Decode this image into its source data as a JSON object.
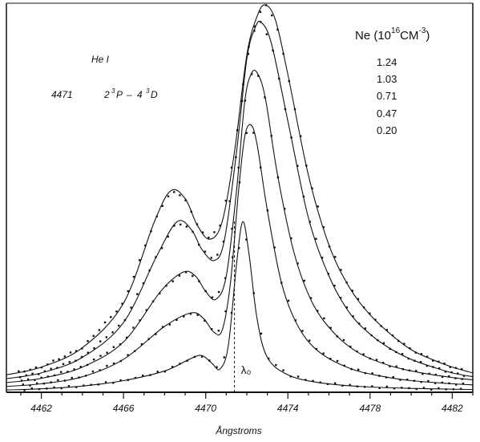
{
  "chart_data": {
    "type": "line",
    "title": "He I",
    "transition": {
      "wavelength": "4471",
      "lower": "2",
      "lower_sup": "3",
      "lower_term": "P",
      "upper": "4",
      "upper_sup": "3",
      "upper_term": "D"
    },
    "legend": {
      "title_prefix": "Ne (10",
      "title_exp": "16",
      "title_mid": "CM",
      "title_exp2": "-3",
      "title_suffix": ")",
      "placement": "top-right",
      "entries": [
        "1.24",
        "1.03",
        "0.71",
        "0.47",
        "0.20"
      ]
    },
    "xlabel": "Ångstroms",
    "ylabel": "",
    "xlim": [
      4460.3,
      4483
    ],
    "ylim": [
      0,
      1
    ],
    "x_ticks": [
      4462,
      4466,
      4470,
      4474,
      4478,
      4482
    ],
    "annotation": "λ₀",
    "lambda0": 4471.4,
    "grid": false,
    "series": [
      {
        "name": "1.24",
        "values": [
          [
            4460.3,
            0.045
          ],
          [
            4462,
            0.065
          ],
          [
            4464,
            0.115
          ],
          [
            4466,
            0.23
          ],
          [
            4467.5,
            0.44
          ],
          [
            4468.3,
            0.52
          ],
          [
            4469,
            0.5
          ],
          [
            4469.6,
            0.43
          ],
          [
            4470.2,
            0.395
          ],
          [
            4470.8,
            0.44
          ],
          [
            4471.4,
            0.62
          ],
          [
            4472,
            0.87
          ],
          [
            4472.5,
            0.97
          ],
          [
            4472.9,
            1.0
          ],
          [
            4473.4,
            0.96
          ],
          [
            4474,
            0.82
          ],
          [
            4475,
            0.56
          ],
          [
            4476,
            0.38
          ],
          [
            4477,
            0.27
          ],
          [
            4478,
            0.2
          ],
          [
            4479,
            0.15
          ],
          [
            4480,
            0.11
          ],
          [
            4481,
            0.085
          ],
          [
            4482,
            0.065
          ],
          [
            4483,
            0.05
          ]
        ]
      },
      {
        "name": "1.03",
        "values": [
          [
            4460.3,
            0.035
          ],
          [
            4462,
            0.05
          ],
          [
            4464,
            0.09
          ],
          [
            4466,
            0.18
          ],
          [
            4467.6,
            0.35
          ],
          [
            4468.6,
            0.44
          ],
          [
            4469.3,
            0.42
          ],
          [
            4469.8,
            0.37
          ],
          [
            4470.4,
            0.34
          ],
          [
            4470.9,
            0.39
          ],
          [
            4471.5,
            0.62
          ],
          [
            4472,
            0.86
          ],
          [
            4472.4,
            0.94
          ],
          [
            4472.7,
            0.955
          ],
          [
            4473.2,
            0.9
          ],
          [
            4474,
            0.7
          ],
          [
            4475,
            0.45
          ],
          [
            4476,
            0.3
          ],
          [
            4477,
            0.205
          ],
          [
            4478,
            0.15
          ],
          [
            4479,
            0.112
          ],
          [
            4480,
            0.085
          ],
          [
            4481,
            0.066
          ],
          [
            4482,
            0.05
          ],
          [
            4483,
            0.04
          ]
        ]
      },
      {
        "name": "0.71",
        "values": [
          [
            4460.3,
            0.025
          ],
          [
            4462,
            0.036
          ],
          [
            4464,
            0.065
          ],
          [
            4466,
            0.13
          ],
          [
            4467.8,
            0.26
          ],
          [
            4468.9,
            0.31
          ],
          [
            4469.5,
            0.3
          ],
          [
            4470,
            0.26
          ],
          [
            4470.5,
            0.24
          ],
          [
            4471,
            0.3
          ],
          [
            4471.5,
            0.52
          ],
          [
            4471.9,
            0.75
          ],
          [
            4472.2,
            0.82
          ],
          [
            4472.5,
            0.825
          ],
          [
            4472.9,
            0.76
          ],
          [
            4473.5,
            0.56
          ],
          [
            4474.3,
            0.36
          ],
          [
            4475.2,
            0.23
          ],
          [
            4476.3,
            0.15
          ],
          [
            4477.5,
            0.1
          ],
          [
            4479,
            0.068
          ],
          [
            4480.5,
            0.05
          ],
          [
            4482,
            0.038
          ],
          [
            4483,
            0.032
          ]
        ]
      },
      {
        "name": "0.47",
        "values": [
          [
            4460.3,
            0.015
          ],
          [
            4462,
            0.022
          ],
          [
            4464,
            0.04
          ],
          [
            4466,
            0.085
          ],
          [
            4468,
            0.17
          ],
          [
            4469.3,
            0.205
          ],
          [
            4469.9,
            0.19
          ],
          [
            4470.4,
            0.155
          ],
          [
            4470.8,
            0.16
          ],
          [
            4471.2,
            0.28
          ],
          [
            4471.6,
            0.52
          ],
          [
            4471.9,
            0.66
          ],
          [
            4472.2,
            0.69
          ],
          [
            4472.5,
            0.64
          ],
          [
            4473,
            0.47
          ],
          [
            4473.7,
            0.28
          ],
          [
            4474.5,
            0.17
          ],
          [
            4475.5,
            0.105
          ],
          [
            4477,
            0.062
          ],
          [
            4478.5,
            0.042
          ],
          [
            4480,
            0.03
          ],
          [
            4482,
            0.022
          ],
          [
            4483,
            0.019
          ]
        ]
      },
      {
        "name": "0.20",
        "values": [
          [
            4460.3,
            0.006
          ],
          [
            4462,
            0.009
          ],
          [
            4464,
            0.016
          ],
          [
            4466,
            0.03
          ],
          [
            4468,
            0.055
          ],
          [
            4469.2,
            0.085
          ],
          [
            4469.8,
            0.095
          ],
          [
            4470.3,
            0.075
          ],
          [
            4470.7,
            0.06
          ],
          [
            4471.1,
            0.12
          ],
          [
            4471.5,
            0.33
          ],
          [
            4471.8,
            0.44
          ],
          [
            4472.1,
            0.36
          ],
          [
            4472.5,
            0.19
          ],
          [
            4473,
            0.09
          ],
          [
            4474,
            0.045
          ],
          [
            4475.5,
            0.025
          ],
          [
            4477.5,
            0.015
          ],
          [
            4480,
            0.01
          ],
          [
            4483,
            0.007
          ]
        ]
      }
    ]
  }
}
